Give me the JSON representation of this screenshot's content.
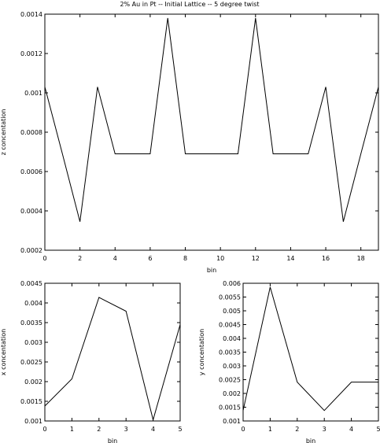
{
  "chart_data": [
    {
      "type": "line",
      "title": "2% Au in Pt -- Initial Lattice -- 5 degree twist",
      "xlabel": "bin",
      "ylabel": "z concentation",
      "xlim": [
        0,
        19
      ],
      "ylim": [
        0.0002,
        0.0014
      ],
      "xticks": [
        "0",
        "2",
        "4",
        "6",
        "8",
        "10",
        "12",
        "14",
        "16",
        "18"
      ],
      "yticks": [
        "0.0002",
        "0.0004",
        "0.0006",
        "0.0008",
        "0.001",
        "0.0012",
        "0.0014"
      ],
      "grid": false,
      "series": [
        {
          "x": [
            0,
            1,
            2,
            3,
            4,
            5,
            6,
            7,
            8,
            9,
            10,
            11,
            12,
            13,
            14,
            15,
            16,
            17,
            18,
            19
          ],
          "values": [
            0.00103,
            0.00069,
            0.000345,
            0.00103,
            0.00069,
            0.00069,
            0.00069,
            0.00138,
            0.00069,
            0.00069,
            0.00069,
            0.00069,
            0.00138,
            0.00069,
            0.00069,
            0.00069,
            0.00103,
            0.000345,
            0.00069,
            0.00103
          ]
        }
      ]
    },
    {
      "type": "line",
      "title": "",
      "xlabel": "bin",
      "ylabel": "x concentation",
      "xlim": [
        0,
        5
      ],
      "ylim": [
        0.001,
        0.0045
      ],
      "xticks": [
        "0",
        "1",
        "2",
        "3",
        "4",
        "5"
      ],
      "yticks": [
        "0.001",
        "0.0015",
        "0.002",
        "0.0025",
        "0.003",
        "0.0035",
        "0.004",
        "0.0045"
      ],
      "grid": false,
      "series": [
        {
          "x": [
            0,
            1,
            2,
            3,
            4,
            5
          ],
          "values": [
            0.00138,
            0.00207,
            0.00414,
            0.00379,
            0.00103,
            0.00345
          ]
        }
      ]
    },
    {
      "type": "line",
      "title": "",
      "xlabel": "bin",
      "ylabel": "y concentation",
      "xlim": [
        0,
        5
      ],
      "ylim": [
        0.001,
        0.006
      ],
      "xticks": [
        "0",
        "1",
        "2",
        "3",
        "4",
        "5"
      ],
      "yticks": [
        "0.001",
        "0.0015",
        "0.002",
        "0.0025",
        "0.003",
        "0.0035",
        "0.004",
        "0.0045",
        "0.005",
        "0.0055",
        "0.006"
      ],
      "grid": false,
      "series": [
        {
          "x": [
            0,
            1,
            2,
            3,
            4,
            5
          ],
          "values": [
            0.00138,
            0.00586,
            0.00241,
            0.00138,
            0.00241,
            0.00241
          ]
        }
      ]
    }
  ]
}
